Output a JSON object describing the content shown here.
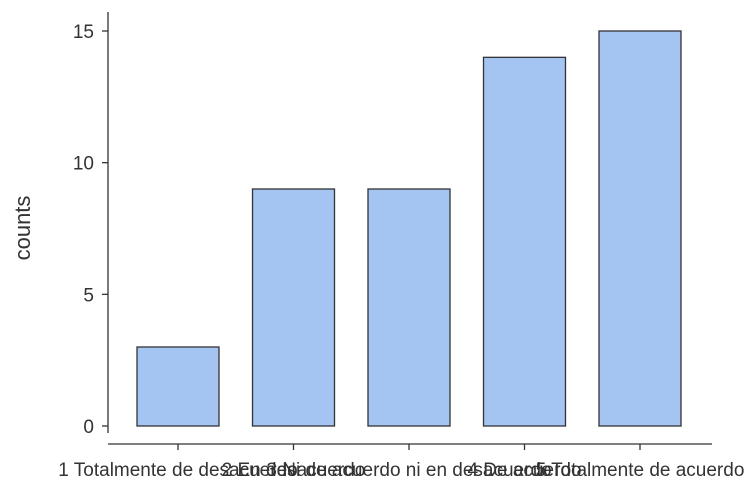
{
  "chart_data": {
    "type": "bar",
    "categories": [
      "1 Totalmente de desacuerdo",
      "2 En desacuerdo",
      "3 Ni de acuerdo ni en desacuerdo",
      "4 De acuerdo",
      "5 Totalmente de acuerdo"
    ],
    "visible_category_text": "1 Totalmente de desacuerdo  2 En desacuerdo  3 Ni de acuerdo ni en desacuerdo  4 De acuerdo  5 Totalmente de acuerdo",
    "values": [
      3,
      9,
      9,
      14,
      15
    ],
    "title": "",
    "xlabel": "",
    "ylabel": "counts",
    "ylim": [
      0,
      15
    ],
    "yticks": [
      0,
      5,
      10,
      15
    ],
    "grid": false,
    "colors": {
      "bar_fill": "#a4c4f2",
      "bar_stroke": "#333333",
      "axis": "#333333"
    }
  }
}
